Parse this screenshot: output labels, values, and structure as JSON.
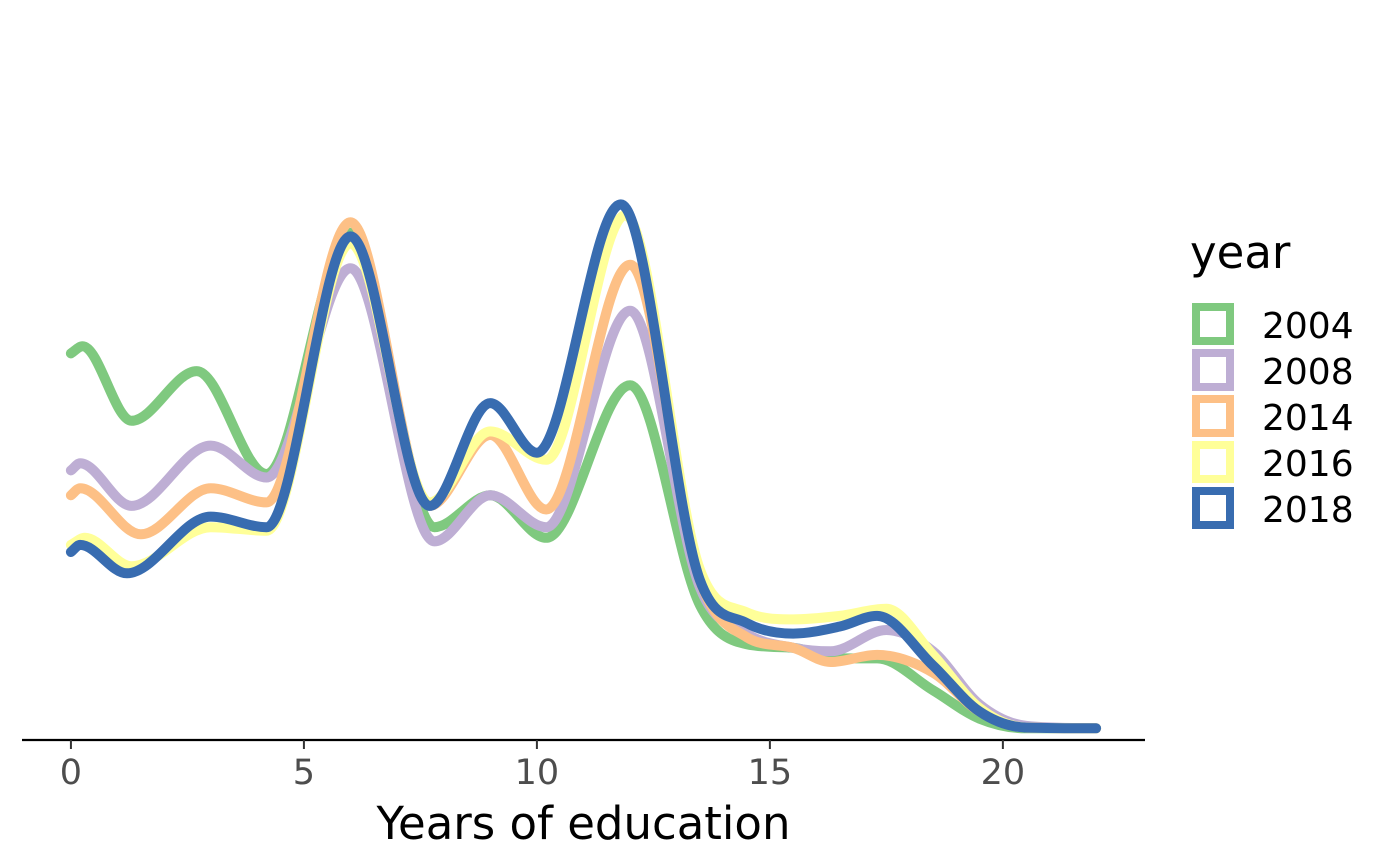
{
  "chart_data": {
    "type": "line",
    "title": "",
    "xlabel": "Years of education",
    "ylabel": "",
    "xlim": [
      -1.05,
      23.05
    ],
    "ylim": [
      -0.003,
      0.2
    ],
    "x_ticks": [
      0,
      5,
      10,
      15,
      20
    ],
    "grid": false,
    "legend": {
      "title": "year",
      "placement": "right"
    },
    "series": [
      {
        "name": "2004",
        "color": "#7FC97F",
        "x": [
          0,
          0.25,
          1.3,
          2.7,
          4.2,
          6,
          7.8,
          9,
          10.2,
          12,
          13.5,
          14.5,
          15.5,
          16.5,
          17.3,
          18.5,
          19.5,
          20.5,
          22
        ],
        "y": [
          0.106,
          0.108,
          0.087,
          0.101,
          0.072,
          0.14,
          0.057,
          0.066,
          0.054,
          0.097,
          0.035,
          0.024,
          0.023,
          0.02,
          0.02,
          0.011,
          0.003,
          0.0003,
          0.0003
        ]
      },
      {
        "name": "2008",
        "color": "#BEAED4",
        "x": [
          0,
          0.2,
          1.3,
          3,
          4.2,
          6,
          7.8,
          9,
          10.2,
          12,
          13.5,
          14.5,
          15.5,
          16.3,
          17.5,
          18.5,
          19.5,
          20.5,
          22
        ],
        "y": [
          0.073,
          0.075,
          0.063,
          0.08,
          0.071,
          0.13,
          0.053,
          0.066,
          0.057,
          0.118,
          0.04,
          0.027,
          0.023,
          0.022,
          0.028,
          0.022,
          0.007,
          0.001,
          0.0003
        ]
      },
      {
        "name": "2014",
        "color": "#FDC086",
        "x": [
          0,
          0.2,
          1.5,
          3,
          4.2,
          6,
          7.7,
          9,
          10.2,
          12,
          13.5,
          14.5,
          15.5,
          16.3,
          17.3,
          18.5,
          19.5,
          20.5,
          22
        ],
        "y": [
          0.066,
          0.068,
          0.055,
          0.068,
          0.064,
          0.143,
          0.063,
          0.083,
          0.062,
          0.131,
          0.042,
          0.026,
          0.023,
          0.019,
          0.021,
          0.016,
          0.005,
          0.0005,
          0.0003
        ]
      },
      {
        "name": "2016",
        "color": "#FFFF99",
        "x": [
          0,
          0.3,
          1.3,
          3,
          4.2,
          6,
          7.7,
          9,
          10.2,
          11.9,
          13.5,
          14.5,
          15.5,
          16.5,
          17.5,
          18.5,
          19.5,
          20.5,
          22
        ],
        "y": [
          0.052,
          0.054,
          0.046,
          0.057,
          0.056,
          0.137,
          0.064,
          0.084,
          0.076,
          0.145,
          0.045,
          0.033,
          0.031,
          0.032,
          0.034,
          0.021,
          0.006,
          0.0005,
          0.0003
        ]
      },
      {
        "name": "2018",
        "color": "#386CB0",
        "x": [
          0,
          0.2,
          1.2,
          3,
          4.2,
          6,
          7.7,
          9,
          10,
          11.8,
          13.5,
          14.5,
          15.5,
          16.5,
          17.3,
          18.5,
          19.5,
          20.5,
          22
        ],
        "y": [
          0.05,
          0.052,
          0.044,
          0.06,
          0.057,
          0.139,
          0.063,
          0.092,
          0.078,
          0.148,
          0.042,
          0.03,
          0.027,
          0.029,
          0.032,
          0.018,
          0.005,
          0.0005,
          0.0003
        ]
      }
    ]
  }
}
